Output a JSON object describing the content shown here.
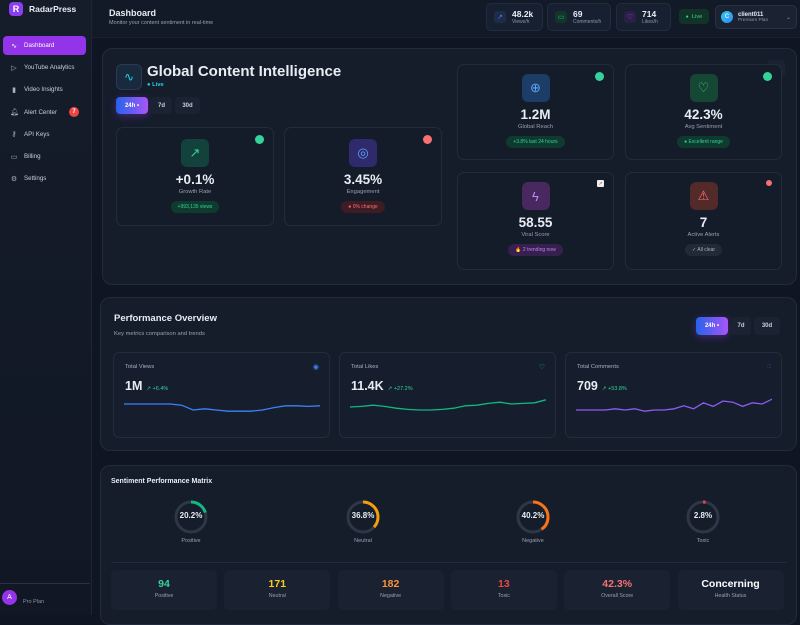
{
  "app": {
    "name": "RadarPress",
    "logo_letter": "R"
  },
  "sidebar": {
    "items": [
      {
        "label": "Dashboard",
        "icon": "activity-icon",
        "active": true
      },
      {
        "label": "YouTube Analytics",
        "icon": "play-icon"
      },
      {
        "label": "Video Insights",
        "icon": "bar-chart-icon"
      },
      {
        "label": "Alert Center",
        "icon": "bell-icon",
        "badge": "7"
      },
      {
        "label": "API Keys",
        "icon": "key-icon"
      },
      {
        "label": "Billing",
        "icon": "credit-card-icon"
      },
      {
        "label": "Settings",
        "icon": "gear-icon"
      }
    ],
    "footer": {
      "avatar_letter": "A",
      "plan": "Pro Plan"
    }
  },
  "header": {
    "title": "Dashboard",
    "subtitle": "Monitor your content sentiment in real-time",
    "stats": [
      {
        "value": "48.2k",
        "label": "Views/h",
        "color": "#3b82f6"
      },
      {
        "value": "69",
        "label": "Comments/h",
        "color": "#10b981"
      },
      {
        "value": "714",
        "label": "Likes/h",
        "color": "#a855f7"
      }
    ],
    "live": "Live",
    "user": {
      "initial": "C",
      "name": "client011",
      "plan": "Premium Plan"
    }
  },
  "hero": {
    "title": "Global Content Intelligence",
    "live": "Live",
    "tabs": [
      "24h",
      "7d",
      "30d"
    ],
    "active_tab": "24h",
    "cards": [
      {
        "value": "+0.1%",
        "label": "Growth Rate",
        "pill": "+993,135 views",
        "tone": "green",
        "icon": "trending-up-icon"
      },
      {
        "value": "3.45%",
        "label": "Engagement",
        "pill": "● 0% change",
        "tone": "red",
        "icon": "target-icon"
      },
      {
        "value": "1.2M",
        "label": "Global Reach",
        "pill": "+3.8% last 24 hours",
        "tone": "green",
        "icon": "globe-icon"
      },
      {
        "value": "42.3%",
        "label": "Avg Sentiment",
        "pill": "● Excellent range",
        "tone": "green",
        "icon": "heart-icon"
      },
      {
        "value": "58.55",
        "label": "Viral Score",
        "pill": "🔥 2 trending now",
        "tone": "purple",
        "icon": "lightning-icon"
      },
      {
        "value": "7",
        "label": "Active Alerts",
        "pill": "✓ All clear",
        "tone": "gray",
        "icon": "warning-icon"
      }
    ]
  },
  "performance": {
    "title": "Performance Overview",
    "subtitle": "Key metrics comparison and trends",
    "tabs": [
      "24h",
      "7d",
      "30d"
    ],
    "active_tab": "24h",
    "cards": [
      {
        "label": "Total Views",
        "value": "1M",
        "change": "+6.4%",
        "color": "#3b82f6",
        "icon": "eye-icon",
        "trend": [
          5,
          5,
          5,
          5,
          5,
          4.6,
          3,
          3.4,
          3,
          2.6,
          2.6,
          2.6,
          3,
          3.8,
          4.4,
          4.4,
          4.2,
          4.4
        ]
      },
      {
        "label": "Total Likes",
        "value": "11.4K",
        "change": "+27.2%",
        "color": "#10b981",
        "icon": "heart-icon",
        "trend": [
          4,
          4.2,
          4.6,
          4.2,
          3.6,
          3.2,
          3,
          3,
          3.2,
          3.6,
          4.4,
          4.6,
          5.2,
          5.6,
          5,
          5.2,
          5.4,
          6.4
        ]
      },
      {
        "label": "Total Comments",
        "value": "709",
        "change": "+53.8%",
        "color": "#8b5cf6",
        "icon": "message-icon",
        "trend": [
          3,
          3,
          3,
          3,
          3.4,
          3,
          3.4,
          2.6,
          3,
          3,
          3.4,
          4.4,
          3.4,
          5.4,
          4.2,
          6,
          5.6,
          4.2,
          5.4,
          5,
          6.6
        ]
      }
    ]
  },
  "sentiment": {
    "title": "Sentiment Performance Matrix",
    "rings": [
      {
        "label": "Positive",
        "percent": 20.2,
        "text": "20.2%",
        "color": "#10b981"
      },
      {
        "label": "Neutral",
        "percent": 36.8,
        "text": "36.8%",
        "color": "#f59e0b"
      },
      {
        "label": "Negative",
        "percent": 40.2,
        "text": "40.2%",
        "color": "#f97316"
      },
      {
        "label": "Toxic",
        "percent": 2.8,
        "text": "2.8%",
        "color": "#ef4444"
      }
    ],
    "stats": [
      {
        "value": "94",
        "label": "Positive",
        "color": "#34d399"
      },
      {
        "value": "171",
        "label": "Neutral",
        "color": "#facc15"
      },
      {
        "value": "182",
        "label": "Negative",
        "color": "#fb923c"
      },
      {
        "value": "13",
        "label": "Toxic",
        "color": "#ef4444"
      },
      {
        "value": "42.3%",
        "label": "Overall Score",
        "color": "#f87171"
      },
      {
        "value": "Concerning",
        "label": "Health Status",
        "color": "#ffffff"
      }
    ]
  }
}
